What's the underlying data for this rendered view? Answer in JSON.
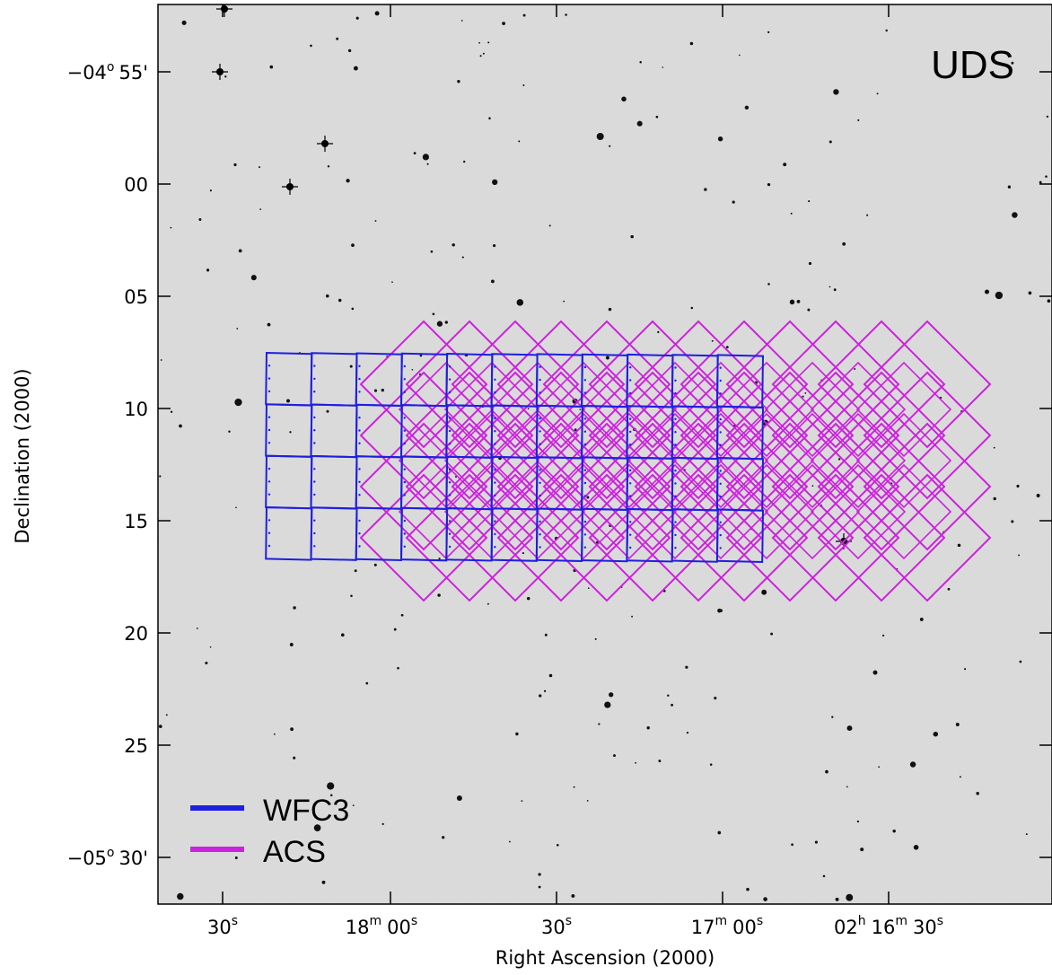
{
  "chart_data": {
    "type": "scatter",
    "title": "UDS",
    "xlabel": "Right Ascension (2000)",
    "ylabel": "Declination (2000)",
    "x_ticks": [
      {
        "main": "30",
        "sup": "s"
      },
      {
        "main": "18",
        "sup": "m",
        "main2": "00",
        "sup2": "s"
      },
      {
        "main": "30",
        "sup": "s"
      },
      {
        "main": "17",
        "sup": "m",
        "main2": "00",
        "sup2": "s"
      },
      {
        "main": "02",
        "sup": "h",
        "main2": "16",
        "sup2": "m",
        "main3": "30",
        "sup3": "s"
      }
    ],
    "y_ticks": [
      {
        "pre": "−04",
        "sup": "o",
        "post": "55'"
      },
      {
        "post": "00"
      },
      {
        "post": "05"
      },
      {
        "post": "10"
      },
      {
        "post": "15"
      },
      {
        "post": "20"
      },
      {
        "post": "25"
      },
      {
        "pre": "−05",
        "sup": "o",
        "post": "30'"
      }
    ],
    "legend": {
      "placement": "bottom-left",
      "entries": [
        {
          "label": "WFC3",
          "color": "#1f1fe0"
        },
        {
          "label": "ACS",
          "color": "#cc22dd"
        }
      ]
    },
    "series": [
      {
        "name": "WFC3",
        "color": "#1f1fe0",
        "grid_columns": 11,
        "grid_rows": 4
      },
      {
        "name": "ACS",
        "color": "#cc22dd",
        "grid_columns": 12,
        "grid_rows": 4
      }
    ],
    "background_color": "#dcdcdc"
  }
}
